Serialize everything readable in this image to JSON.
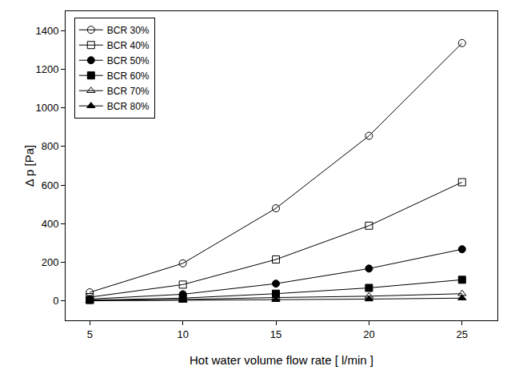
{
  "chart_data": {
    "type": "line",
    "x_label": "Hot water volume flow rate [ l/min ]",
    "y_label": "Δ p [Pa]",
    "x": [
      5,
      10,
      15,
      20,
      25
    ],
    "series": [
      {
        "name": "BCR 30%",
        "color": "#000000",
        "marker": "circle-open",
        "values": [
          45,
          195,
          480,
          855,
          1335
        ]
      },
      {
        "name": "BCR 40%",
        "color": "#000000",
        "marker": "square-open",
        "values": [
          20,
          85,
          215,
          390,
          615
        ]
      },
      {
        "name": "BCR 50%",
        "color": "#000000",
        "marker": "circle",
        "values": [
          10,
          35,
          90,
          168,
          268
        ]
      },
      {
        "name": "BCR 60%",
        "color": "#000000",
        "marker": "square",
        "values": [
          5,
          15,
          38,
          68,
          110
        ]
      },
      {
        "name": "BCR 70%",
        "color": "#000000",
        "marker": "triangle-up-open",
        "values": [
          2,
          8,
          18,
          25,
          38
        ]
      },
      {
        "name": "BCR 80%",
        "color": "#000000",
        "marker": "triangle-up",
        "values": [
          1,
          3,
          7,
          10,
          15
        ]
      }
    ],
    "xlim": [
      3.7,
      26.9
    ],
    "xticks": [
      5,
      10,
      15,
      20,
      25
    ],
    "ylim": [
      -100,
      1500
    ],
    "yticks": [
      0,
      200,
      400,
      600,
      800,
      1000,
      1200,
      1400
    ],
    "grid": false,
    "legend": "top-left"
  }
}
